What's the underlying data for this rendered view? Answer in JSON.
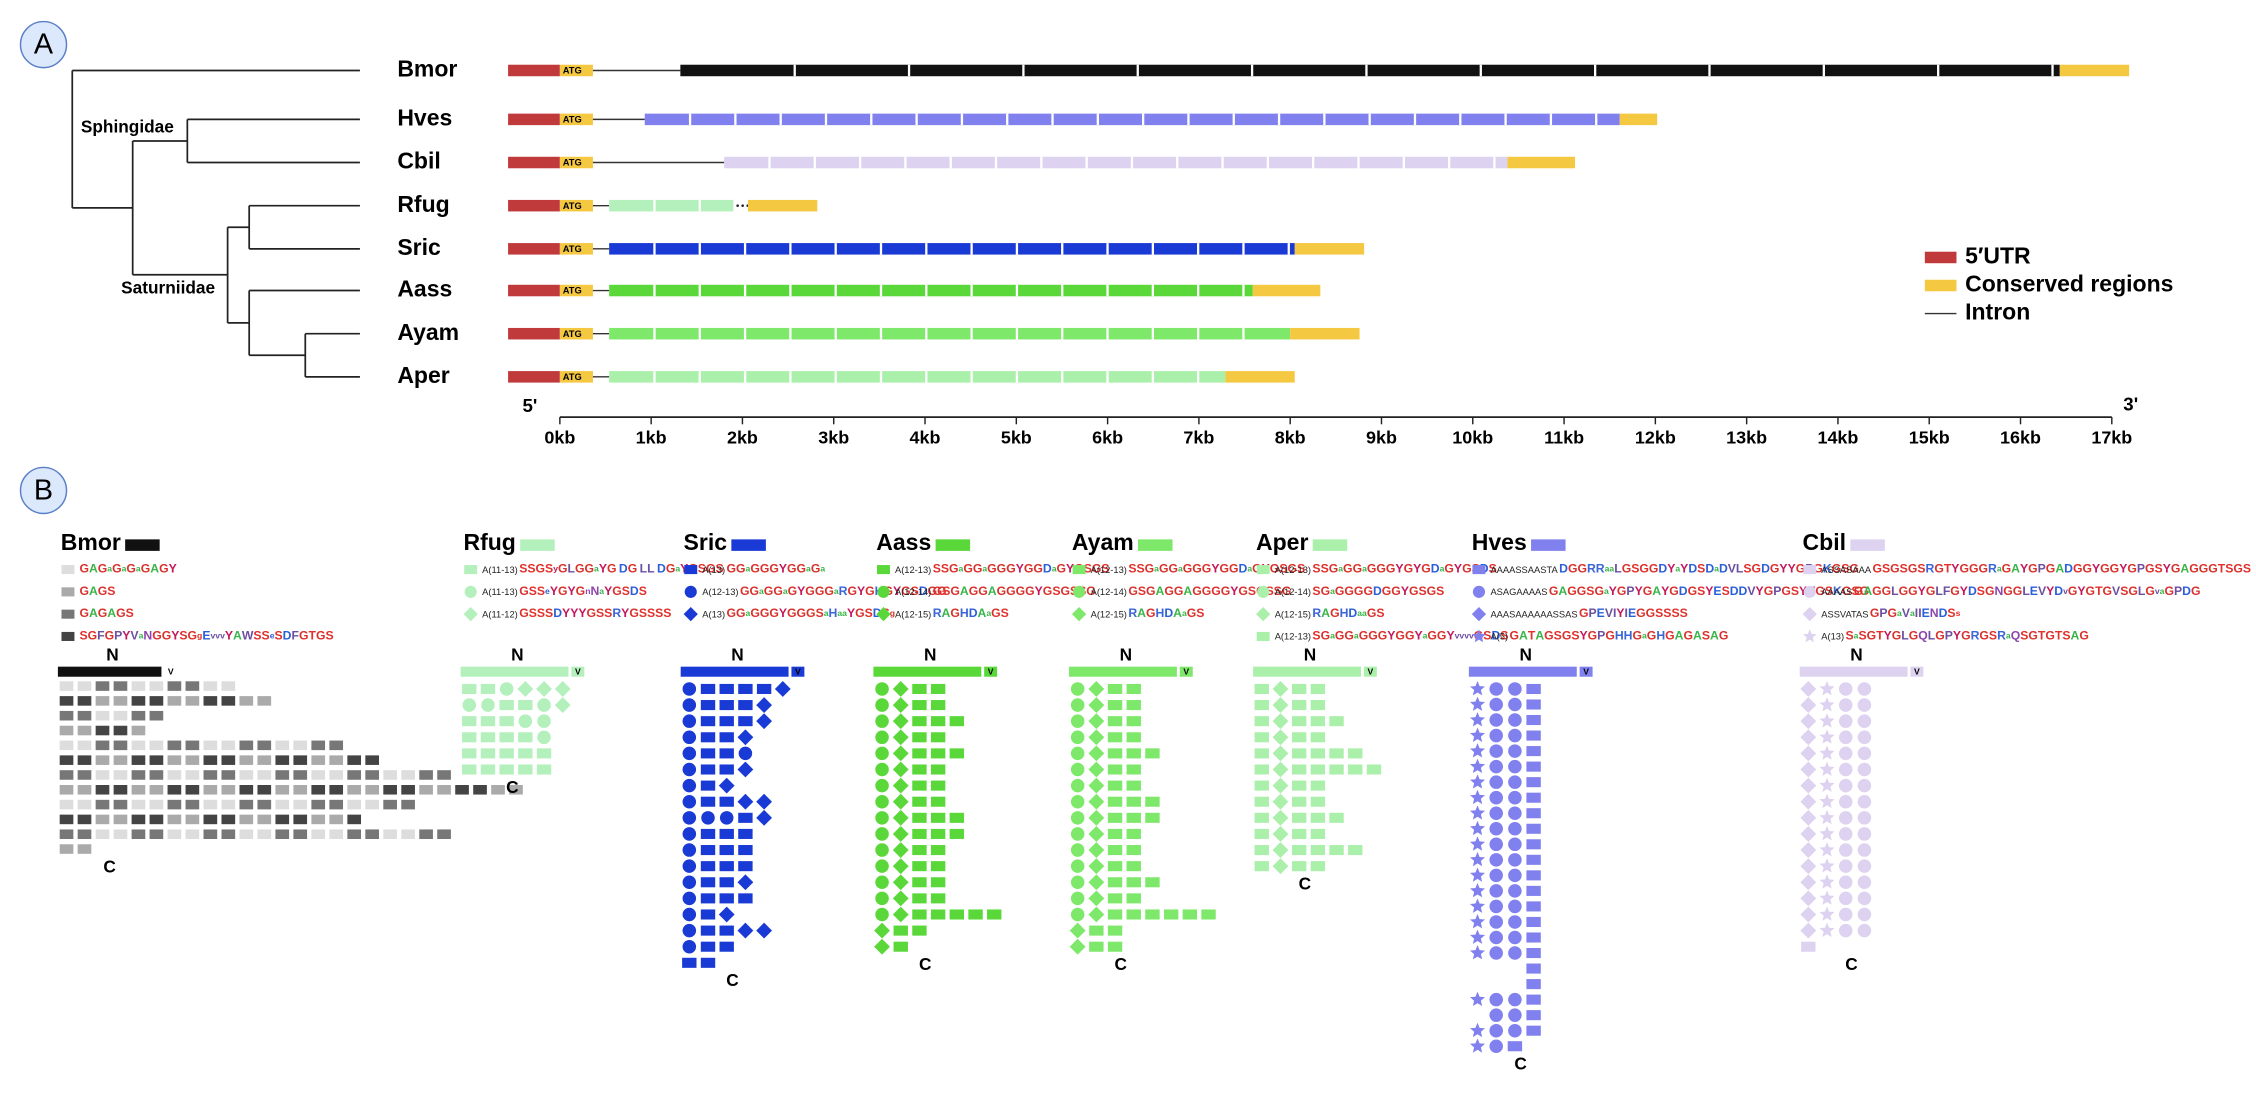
{
  "panels": {
    "a": "A",
    "b": "B"
  },
  "tree": {
    "clades": [
      "Sphingidae",
      "Saturniidae"
    ]
  },
  "start_codon": "ATG",
  "genes": [
    {
      "name": "Bmor",
      "color": "#111111",
      "repeat": [
        1.32,
        16.43
      ],
      "conserved": [
        16.43,
        17.19
      ]
    },
    {
      "name": "Hves",
      "color": "#8080ee",
      "repeat": [
        0.93,
        11.61
      ],
      "conserved": [
        11.61,
        12.02
      ]
    },
    {
      "name": "Cbil",
      "color": "#ddd2f0",
      "repeat": [
        1.8,
        10.38
      ],
      "conserved": [
        10.38,
        11.12
      ]
    },
    {
      "name": "Rfug",
      "color": "#b4f0bc",
      "repeat": [
        0.54,
        1.9
      ],
      "conserved": [
        2.06,
        2.82
      ]
    },
    {
      "name": "Sric",
      "color": "#1a3ad6",
      "repeat": [
        0.54,
        8.05
      ],
      "conserved": [
        8.05,
        8.81
      ]
    },
    {
      "name": "Aass",
      "color": "#5ad83a",
      "repeat": [
        0.54,
        7.59
      ],
      "conserved": [
        7.59,
        8.33
      ]
    },
    {
      "name": "Ayam",
      "color": "#7ee86a",
      "repeat": [
        0.54,
        8.0
      ],
      "conserved": [
        8.0,
        8.76
      ]
    },
    {
      "name": "Aper",
      "color": "#aaf0aa",
      "repeat": [
        0.54,
        7.29
      ],
      "conserved": [
        7.29,
        8.05
      ]
    }
  ],
  "axis": {
    "xlim": [
      0,
      17
    ],
    "end_labels": [
      "5'",
      "3'"
    ],
    "ticks": [
      {
        "value": 0,
        "label": "0kb"
      },
      {
        "value": 1,
        "label": "1kb"
      },
      {
        "value": 2,
        "label": "2kb"
      },
      {
        "value": 3,
        "label": "3kb"
      },
      {
        "value": 4,
        "label": "4kb"
      },
      {
        "value": 5,
        "label": "5kb"
      },
      {
        "value": 6,
        "label": "6kb"
      },
      {
        "value": 7,
        "label": "7kb"
      },
      {
        "value": 8,
        "label": "8kb"
      },
      {
        "value": 9,
        "label": "9kb"
      },
      {
        "value": 10,
        "label": "10kb"
      },
      {
        "value": 11,
        "label": "11kb"
      },
      {
        "value": 12,
        "label": "12kb"
      },
      {
        "value": 13,
        "label": "13kb"
      },
      {
        "value": 14,
        "label": "14kb"
      },
      {
        "value": 15,
        "label": "15kb"
      },
      {
        "value": 16,
        "label": "16kb"
      },
      {
        "value": 17,
        "label": "17kb"
      }
    ]
  },
  "legend": [
    {
      "label": "5′UTR",
      "color": "#c0393b"
    },
    {
      "label": "Conserved regions",
      "color": "#f5c842"
    },
    {
      "label": "Intron",
      "color": "#333333"
    }
  ],
  "terminal_labels": {
    "n": "N",
    "c": "C",
    "v": "V"
  },
  "repeats": [
    {
      "name": "Bmor",
      "color": "#111111",
      "marker_colors": [
        "#dddddd",
        "#aaaaaa",
        "#777777",
        "#444444"
      ],
      "motifs": [
        {
          "sequence": "GAGaGaGaGAGY",
          "marker": "square"
        },
        {
          "sequence": "GAGS",
          "marker": "square"
        },
        {
          "sequence": "GAGAGS",
          "marker": "square"
        },
        {
          "sequence": "SGFGPYVaNGGYSGgEvvvYAWSSeSDFGTGS",
          "marker": "square"
        }
      ]
    },
    {
      "name": "Rfug",
      "color": "#b4f0bc",
      "motifs": [
        {
          "prefix": "A(11-13)",
          "sequence": "SSGSyGLGGaYG DG LL DGaYGSGS",
          "marker": "square"
        },
        {
          "prefix": "A(11-13)",
          "sequence": "GSSeYGYGnNaYGSDS",
          "marker": "circle"
        },
        {
          "prefix": "A(11-12)",
          "sequence": "GSSSDYYYGSSRYGSSSS",
          "marker": "diamond"
        }
      ]
    },
    {
      "name": "Sric",
      "color": "#1a3ad6",
      "motifs": [
        {
          "prefix": "A(13)",
          "sequence": "GGaGGGYGGaGa",
          "marker": "square"
        },
        {
          "prefix": "A(12-13)",
          "sequence": "GGaGGaGYGGGaRGYGHGYGSDGG",
          "marker": "circle"
        },
        {
          "prefix": "A(13)",
          "sequence": "GGaGGGYGGGSaHaaYGSDSg",
          "marker": "diamond"
        }
      ]
    },
    {
      "name": "Aass",
      "color": "#5ad83a",
      "motifs": [
        {
          "prefix": "A(12-13)",
          "sequence": "SSGaGGaGGGYGGDaGYGSGS",
          "marker": "square"
        },
        {
          "prefix": "A(12-14)",
          "sequence": "GSGAGGAGGGGYGSGSSG",
          "marker": "circle"
        },
        {
          "prefix": "A(12-15)",
          "sequence": "RAGHDAaGS",
          "marker": "diamond"
        }
      ]
    },
    {
      "name": "Ayam",
      "color": "#7ee86a",
      "motifs": [
        {
          "prefix": "A(12-13)",
          "sequence": "SSGaGGaGGGYGGDaGYGSGS",
          "marker": "square"
        },
        {
          "prefix": "A(12-14)",
          "sequence": "GSGAGGAGGGGYGSGSSG",
          "marker": "circle"
        },
        {
          "prefix": "A(12-15)",
          "sequence": "RAGHDAaGS",
          "marker": "diamond"
        }
      ]
    },
    {
      "name": "Aper",
      "color": "#aaf0aa",
      "motifs": [
        {
          "prefix": "A(12-13)",
          "sequence": "SSGaGGaGGGYGYGDaGYGSDS",
          "marker": "square"
        },
        {
          "prefix": "A(12-14)",
          "sequence": "SGaGGGGDGGYGSGS",
          "marker": "circle"
        },
        {
          "prefix": "A(12-15)",
          "sequence": "RAGHDaaGS",
          "marker": "diamond"
        },
        {
          "prefix": "A(12-13)",
          "sequence": "SGaGGaGGGYGGYaGGYvvvvGSDS",
          "marker": "square"
        }
      ]
    },
    {
      "name": "Hves",
      "color": "#8080ee",
      "motifs": [
        {
          "prefix": "AAAASSAASTA",
          "sequence": "DGGRRaaLGSGGDYaYDSDaDVLSGDGYYGPGKGSG",
          "marker": "square"
        },
        {
          "prefix": "ASAGAAAAS",
          "sequence": "GAGGSGaYGPYGAYGDGSYESDDVYGPGSYYGSKGSG",
          "marker": "circle"
        },
        {
          "prefix": "AAASAAAAAASSAS",
          "sequence": "GPEVIYIEGGSSSS",
          "marker": "diamond"
        },
        {
          "prefix": "A(5)",
          "sequence": "GATAGSGSYGPGHHGaGHGAGASAG",
          "marker": "star"
        }
      ]
    },
    {
      "name": "Cbil",
      "color": "#ddd2f0",
      "motifs": [
        {
          "prefix": "ASSASAAA",
          "sequence": "GSGSGSRGTYGGGRaGAYGPGADGGYGGYGPGSYGAGGGTSGS",
          "marker": "square"
        },
        {
          "prefix": "AAAAS",
          "sequence": "GAGGLGGYGLFGYDSGNGGLEVYDvGYGTGVSGLGvaGPDG",
          "marker": "circle"
        },
        {
          "prefix": "ASSVATAS",
          "sequence": "GPGaVaIIENDSs",
          "marker": "diamond"
        },
        {
          "prefix": "A(13)",
          "sequence": "SaSGTYGLGQLGPYGRGSRaQSGTGTSAG",
          "marker": "star"
        }
      ]
    }
  ]
}
